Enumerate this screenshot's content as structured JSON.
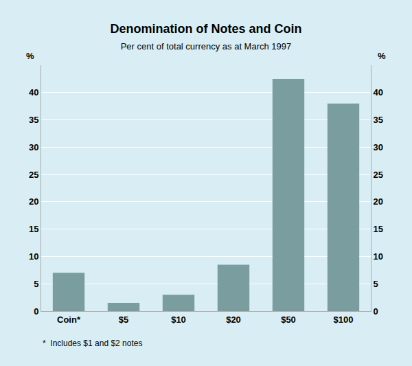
{
  "chart_data": {
    "type": "bar",
    "title": "Denomination of Notes and Coin",
    "subtitle": "Per cent of total currency as at March 1997",
    "categories": [
      "Coin*",
      "$5",
      "$10",
      "$20",
      "$50",
      "$100"
    ],
    "values": [
      7.0,
      1.5,
      3.0,
      8.5,
      42.5,
      38.0
    ],
    "color": "#7a9da0",
    "ylim": [
      0,
      45
    ],
    "yticks": [
      0,
      5,
      10,
      15,
      20,
      25,
      30,
      35,
      40
    ],
    "y2lim": [
      0,
      45
    ],
    "y2ticks": [
      0,
      5,
      10,
      15,
      20,
      25,
      30,
      35,
      40
    ],
    "ylabel": "%",
    "y2label": "%",
    "annotations": [
      "*  Includes $1 and $2 notes"
    ],
    "grid": true
  }
}
